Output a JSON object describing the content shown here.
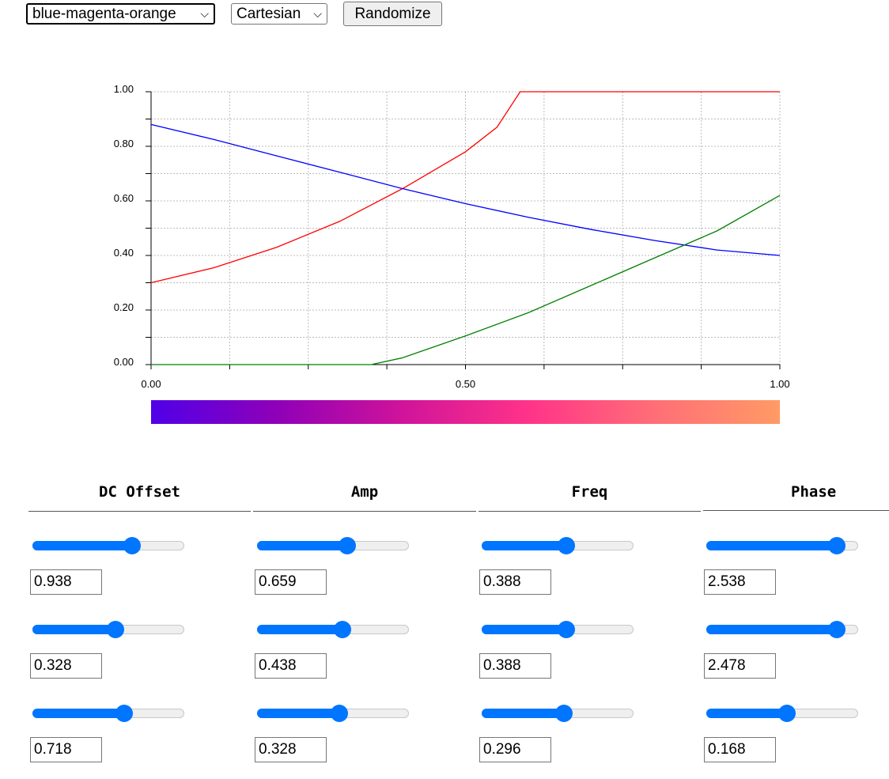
{
  "toolbar": {
    "colormap_select": "blue-magenta-orange",
    "coords_select": "Cartesian",
    "randomize_label": "Randomize"
  },
  "colormap": {
    "stops": [
      "#5000e8",
      "#8f00b8",
      "#d0139a",
      "#ff3389",
      "#ff6e77",
      "#ff9a65"
    ]
  },
  "columns": [
    "DC Offset",
    "Amp",
    "Freq",
    "Phase"
  ],
  "params": [
    [
      {
        "value": "0.938",
        "level": 0.658
      },
      {
        "value": "0.659",
        "level": 0.592
      },
      {
        "value": "0.388",
        "level": 0.556
      },
      {
        "value": "2.538",
        "level": 0.858
      }
    ],
    [
      {
        "value": "0.328",
        "level": 0.545
      },
      {
        "value": "0.438",
        "level": 0.56
      },
      {
        "value": "0.388",
        "level": 0.556
      },
      {
        "value": "2.478",
        "level": 0.858
      }
    ],
    [
      {
        "value": "0.718",
        "level": 0.605
      },
      {
        "value": "0.328",
        "level": 0.542
      },
      {
        "value": "0.296",
        "level": 0.541
      },
      {
        "value": "0.168",
        "level": 0.53
      }
    ]
  ],
  "chart_data": {
    "type": "line",
    "xlim": [
      0,
      1
    ],
    "ylim": [
      0,
      1
    ],
    "x_ticks": [
      "0.00",
      "0.50",
      "1.00"
    ],
    "y_ticks": [
      "0.00",
      "0.20",
      "0.40",
      "0.60",
      "0.80",
      "1.00"
    ],
    "grid": true,
    "series": [
      {
        "color": "#ff0000",
        "x": [
          0,
          0.1,
          0.2,
          0.3,
          0.4,
          0.5,
          0.55,
          0.587,
          0.7,
          0.8,
          0.9,
          1.0
        ],
        "y": [
          0.3,
          0.355,
          0.43,
          0.525,
          0.645,
          0.78,
          0.87,
          1.0,
          1.0,
          1.0,
          1.0,
          1.0
        ]
      },
      {
        "color": "#0000ff",
        "x": [
          0,
          0.1,
          0.2,
          0.3,
          0.4,
          0.5,
          0.6,
          0.7,
          0.8,
          0.9,
          1.0
        ],
        "y": [
          0.88,
          0.825,
          0.765,
          0.705,
          0.645,
          0.59,
          0.54,
          0.495,
          0.455,
          0.42,
          0.4
        ]
      },
      {
        "color": "#008000",
        "x": [
          0,
          0.2,
          0.35,
          0.4,
          0.5,
          0.6,
          0.7,
          0.8,
          0.9,
          1.0
        ],
        "y": [
          0,
          0,
          0,
          0.025,
          0.105,
          0.19,
          0.29,
          0.39,
          0.49,
          0.62
        ]
      }
    ]
  }
}
